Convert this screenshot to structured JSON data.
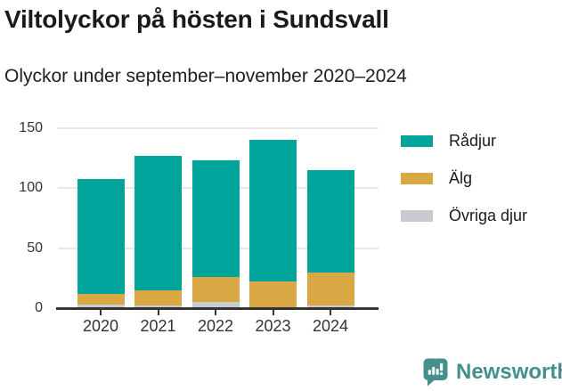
{
  "header": {
    "title": "Viltolyckor på hösten i Sundsvall",
    "subtitle": "Olyckor under september–november 2020–2024"
  },
  "chart_data": {
    "type": "bar",
    "stacked": true,
    "title": "Viltolyckor på hösten i Sundsvall",
    "subtitle": "Olyckor under september–november 2020–2024",
    "categories": [
      "2020",
      "2021",
      "2022",
      "2023",
      "2024"
    ],
    "series": [
      {
        "name": "Rådjur",
        "color": "#00A49B",
        "values": [
          96,
          112,
          97,
          118,
          85
        ]
      },
      {
        "name": "Älg",
        "color": "#D9A845",
        "values": [
          9,
          13,
          21,
          21,
          28
        ]
      },
      {
        "name": "Övriga djur",
        "color": "#CACAD1",
        "values": [
          3,
          2,
          5,
          1,
          2
        ]
      }
    ],
    "stack_order_bottom_to_top": [
      "Övriga djur",
      "Älg",
      "Rådjur"
    ],
    "totals": [
      108,
      127,
      123,
      140,
      115
    ],
    "xlabel": "",
    "ylabel": "",
    "ylim": [
      0,
      150
    ],
    "yticks": [
      0,
      50,
      100,
      150
    ],
    "grid": "horizontal",
    "legend_position": "right",
    "axis_color": "#333333",
    "gridline_color": "#e7e7e7"
  },
  "footer": {
    "brand": "Newsworthy",
    "brand_color": "#43908C"
  }
}
